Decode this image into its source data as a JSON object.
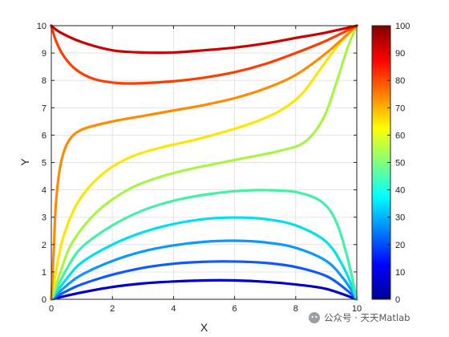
{
  "chart_data": {
    "type": "line",
    "xlabel": "X",
    "ylabel": "Y",
    "xlim": [
      0,
      10
    ],
    "ylim": [
      0,
      10
    ],
    "xticks": [
      "0",
      "2",
      "4",
      "6",
      "8",
      "10"
    ],
    "yticks": [
      "0",
      "1",
      "2",
      "3",
      "4",
      "5",
      "6",
      "7",
      "8",
      "9",
      "10"
    ],
    "grid": true,
    "colormap": "jet",
    "colorbar": {
      "limits": [
        0,
        100
      ],
      "ticks": [
        "0",
        "10",
        "20",
        "30",
        "40",
        "50",
        "60",
        "70",
        "80",
        "90",
        "100"
      ],
      "location": "right"
    },
    "series": [
      {
        "level": 10,
        "color": "#0000cc",
        "points": [
          [
            0,
            0
          ],
          [
            1,
            0.25
          ],
          [
            2,
            0.45
          ],
          [
            3,
            0.58
          ],
          [
            4,
            0.65
          ],
          [
            5,
            0.69
          ],
          [
            6,
            0.69
          ],
          [
            7,
            0.64
          ],
          [
            8,
            0.54
          ],
          [
            9,
            0.38
          ],
          [
            10,
            0
          ]
        ]
      },
      {
        "level": 20,
        "color": "#0f5aff",
        "points": [
          [
            0,
            0
          ],
          [
            0.5,
            0.3
          ],
          [
            1,
            0.55
          ],
          [
            2,
            0.9
          ],
          [
            3,
            1.15
          ],
          [
            4,
            1.3
          ],
          [
            5,
            1.37
          ],
          [
            6,
            1.38
          ],
          [
            7,
            1.33
          ],
          [
            8,
            1.18
          ],
          [
            9,
            0.85
          ],
          [
            9.6,
            0.4
          ],
          [
            10,
            0
          ]
        ]
      },
      {
        "level": 30,
        "color": "#0a9aff",
        "points": [
          [
            0,
            0
          ],
          [
            0.5,
            0.5
          ],
          [
            1,
            0.9
          ],
          [
            2,
            1.4
          ],
          [
            3,
            1.75
          ],
          [
            4,
            1.97
          ],
          [
            5,
            2.1
          ],
          [
            6,
            2.14
          ],
          [
            7,
            2.08
          ],
          [
            8,
            1.88
          ],
          [
            9,
            1.4
          ],
          [
            9.6,
            0.7
          ],
          [
            10,
            0
          ]
        ]
      },
      {
        "level": 40,
        "color": "#00e0f0",
        "points": [
          [
            0,
            0
          ],
          [
            0.5,
            0.75
          ],
          [
            1,
            1.35
          ],
          [
            2,
            2.0
          ],
          [
            3,
            2.45
          ],
          [
            4,
            2.75
          ],
          [
            5,
            2.93
          ],
          [
            6,
            2.99
          ],
          [
            7,
            2.93
          ],
          [
            8,
            2.7
          ],
          [
            9,
            2.1
          ],
          [
            9.6,
            1.1
          ],
          [
            10,
            0
          ]
        ]
      },
      {
        "level": 50,
        "color": "#45f0a8",
        "points": [
          [
            0,
            0
          ],
          [
            0.5,
            1.1
          ],
          [
            1,
            1.9
          ],
          [
            2,
            2.7
          ],
          [
            3,
            3.25
          ],
          [
            4,
            3.6
          ],
          [
            5,
            3.82
          ],
          [
            6,
            3.95
          ],
          [
            7,
            3.99
          ],
          [
            8,
            3.92
          ],
          [
            8.8,
            3.6
          ],
          [
            9.3,
            2.9
          ],
          [
            9.7,
            1.5
          ],
          [
            10,
            0
          ]
        ]
      },
      {
        "level": 60,
        "color": "#a8f545",
        "points": [
          [
            0,
            0
          ],
          [
            0.3,
            1.0
          ],
          [
            0.7,
            2.1
          ],
          [
            1.5,
            3.2
          ],
          [
            2.5,
            4.0
          ],
          [
            3.5,
            4.45
          ],
          [
            4.5,
            4.75
          ],
          [
            5.5,
            4.98
          ],
          [
            6.5,
            5.2
          ],
          [
            7.5,
            5.43
          ],
          [
            8.3,
            5.75
          ],
          [
            8.9,
            6.6
          ],
          [
            9.3,
            7.8
          ],
          [
            9.7,
            9.2
          ],
          [
            10,
            10
          ]
        ]
      },
      {
        "level": 70,
        "color": "#ffe600",
        "points": [
          [
            0,
            0
          ],
          [
            0.15,
            1.0
          ],
          [
            0.4,
            2.3
          ],
          [
            0.9,
            3.6
          ],
          [
            1.7,
            4.6
          ],
          [
            2.6,
            5.2
          ],
          [
            3.6,
            5.55
          ],
          [
            4.6,
            5.8
          ],
          [
            5.6,
            6.1
          ],
          [
            6.6,
            6.45
          ],
          [
            7.5,
            6.9
          ],
          [
            8.2,
            7.5
          ],
          [
            8.8,
            8.4
          ],
          [
            9.4,
            9.3
          ],
          [
            10,
            10
          ]
        ]
      },
      {
        "level": 80,
        "color": "#ff8c00",
        "points": [
          [
            0,
            0
          ],
          [
            0.08,
            1.8
          ],
          [
            0.15,
            3.5
          ],
          [
            0.3,
            4.9
          ],
          [
            0.55,
            5.75
          ],
          [
            1,
            6.2
          ],
          [
            2,
            6.5
          ],
          [
            3,
            6.7
          ],
          [
            4,
            6.9
          ],
          [
            5,
            7.1
          ],
          [
            6,
            7.35
          ],
          [
            7,
            7.7
          ],
          [
            8,
            8.2
          ],
          [
            9,
            9.0
          ],
          [
            10,
            10
          ]
        ]
      },
      {
        "level": 90,
        "color": "#ff3d00",
        "points": [
          [
            0,
            10
          ],
          [
            0.15,
            9.45
          ],
          [
            0.4,
            8.9
          ],
          [
            0.8,
            8.4
          ],
          [
            1.4,
            8.05
          ],
          [
            2.2,
            7.9
          ],
          [
            3,
            7.9
          ],
          [
            4,
            7.97
          ],
          [
            5,
            8.1
          ],
          [
            6,
            8.3
          ],
          [
            7,
            8.6
          ],
          [
            8,
            9.0
          ],
          [
            9,
            9.45
          ],
          [
            10,
            10
          ]
        ]
      },
      {
        "level": 100,
        "color": "#cc0000",
        "points": [
          [
            0,
            10
          ],
          [
            0.3,
            9.75
          ],
          [
            1,
            9.4
          ],
          [
            2,
            9.1
          ],
          [
            3,
            9.02
          ],
          [
            4,
            9.02
          ],
          [
            5,
            9.1
          ],
          [
            6,
            9.2
          ],
          [
            7,
            9.35
          ],
          [
            8,
            9.55
          ],
          [
            9,
            9.75
          ],
          [
            10,
            10
          ]
        ]
      }
    ]
  },
  "watermark": {
    "text": "公众号 · 天天Matlab"
  }
}
